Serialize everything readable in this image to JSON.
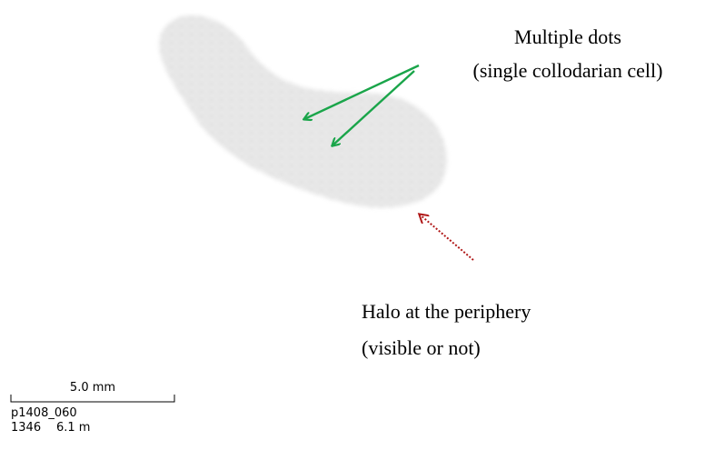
{
  "annotations": {
    "dots": {
      "title": "Multiple dots",
      "subtitle": "(single collodarian cell)"
    },
    "halo": {
      "title": "Halo at the periphery",
      "subtitle": "(visible or not)"
    }
  },
  "scale": {
    "bar_label": "5.0 mm",
    "sample_id": "p1408_060",
    "depth_id": "1346",
    "depth": "6.1 m"
  }
}
